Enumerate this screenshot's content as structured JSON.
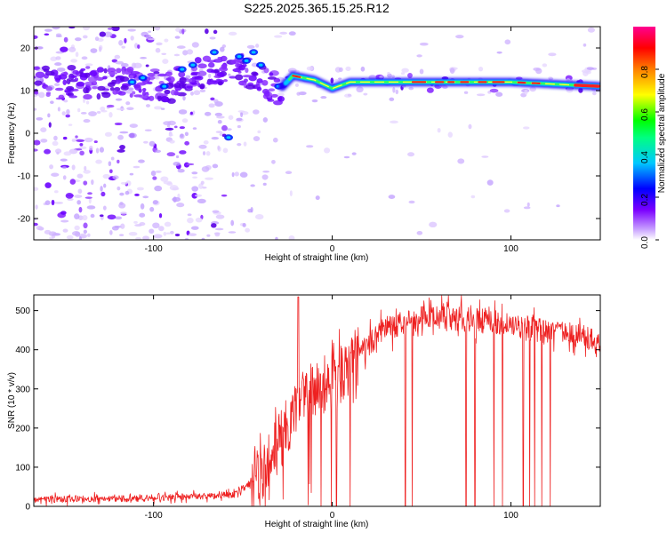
{
  "title": "S225.2025.365.15.25.R12",
  "chart_data": [
    {
      "type": "heatmap",
      "panel": "spectrogram",
      "xlabel": "Height of straight line (km)",
      "ylabel": "Frequency (Hz)",
      "xlim": [
        -167,
        150
      ],
      "ylim": [
        -25,
        25
      ],
      "xticks": [
        -100,
        0,
        100
      ],
      "yticks": [
        -20,
        -10,
        0,
        10,
        20
      ],
      "colorbar": {
        "label": "Normalized spectral amplitude",
        "range": [
          0.0,
          1.0
        ],
        "ticks": [
          0.0,
          0.2,
          0.4,
          0.6,
          0.8
        ],
        "tick_labels": [
          "0.0",
          "0.2",
          "0.4",
          "0.6",
          "0.8"
        ],
        "colors": [
          "#ffffff",
          "#7b00ff",
          "#0000ff",
          "#00c8ff",
          "#00ff00",
          "#ffff00",
          "#ff8000",
          "#ff0000",
          "#ff00a0"
        ]
      },
      "ridge": [
        {
          "x": -110,
          "f": 12
        },
        {
          "x": -90,
          "f": 11
        },
        {
          "x": -75,
          "f": 14
        },
        {
          "x": -50,
          "f": 15
        },
        {
          "x": -30,
          "f": 10
        },
        {
          "x": -22,
          "f": 13.5
        },
        {
          "x": -10,
          "f": 12.5
        },
        {
          "x": 0,
          "f": 10.5
        },
        {
          "x": 10,
          "f": 12
        },
        {
          "x": 50,
          "f": 12
        },
        {
          "x": 100,
          "f": 12
        },
        {
          "x": 150,
          "f": 11
        }
      ]
    },
    {
      "type": "line",
      "panel": "snr",
      "series": [
        {
          "name": "SNR",
          "color": "#ee2020"
        }
      ],
      "xlabel": "Height of straight line (km)",
      "ylabel": "SNR (10 * v/v)",
      "xlim": [
        -167,
        150
      ],
      "ylim": [
        0,
        540
      ],
      "xticks": [
        -100,
        0,
        100
      ],
      "yticks": [
        0,
        100,
        200,
        300,
        400,
        500
      ],
      "trend": [
        {
          "x": -167,
          "y": 18
        },
        {
          "x": -110,
          "y": 20
        },
        {
          "x": -80,
          "y": 25
        },
        {
          "x": -55,
          "y": 30
        },
        {
          "x": -40,
          "y": 80
        },
        {
          "x": -30,
          "y": 160
        },
        {
          "x": -20,
          "y": 250
        },
        {
          "x": -10,
          "y": 300
        },
        {
          "x": 0,
          "y": 320
        },
        {
          "x": 10,
          "y": 360
        },
        {
          "x": 20,
          "y": 410
        },
        {
          "x": 30,
          "y": 455
        },
        {
          "x": 50,
          "y": 480
        },
        {
          "x": 70,
          "y": 480
        },
        {
          "x": 90,
          "y": 470
        },
        {
          "x": 110,
          "y": 455
        },
        {
          "x": 130,
          "y": 440
        },
        {
          "x": 150,
          "y": 425
        }
      ]
    }
  ]
}
